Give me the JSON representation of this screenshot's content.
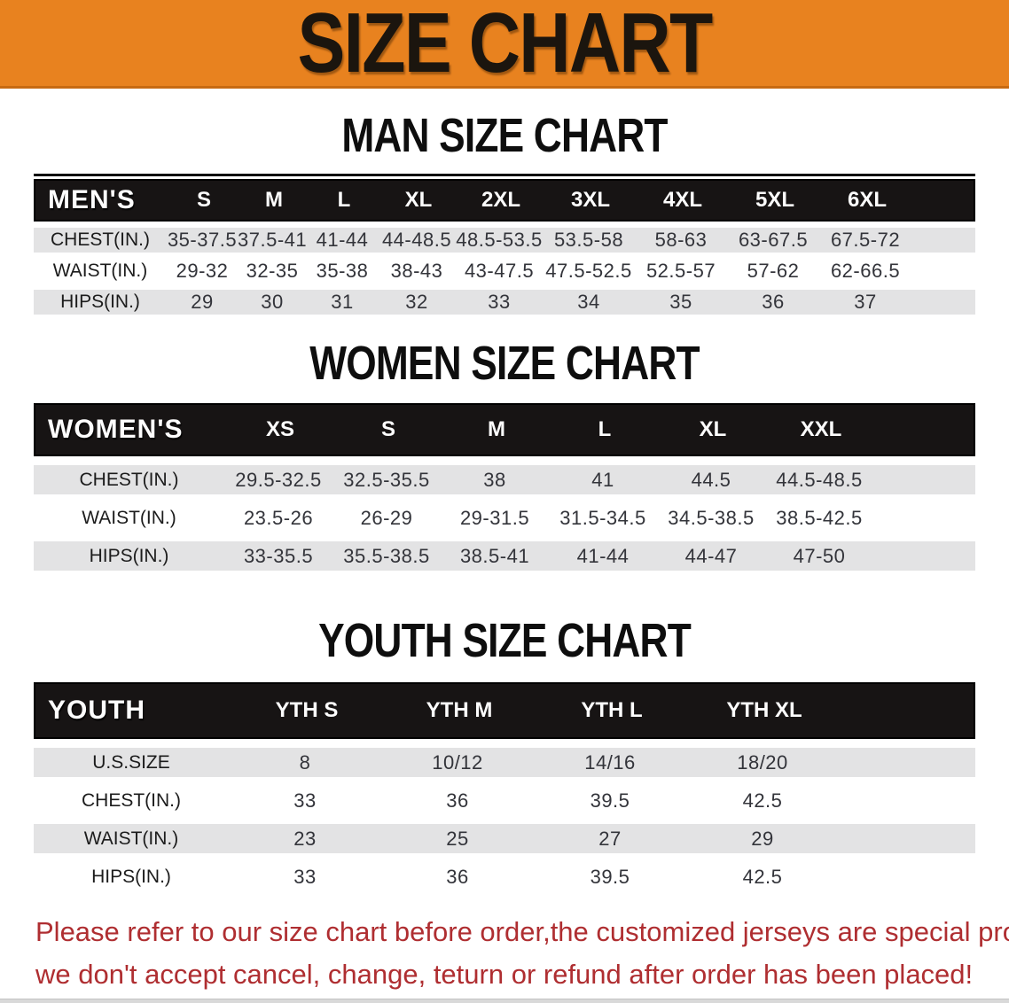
{
  "banner": {
    "title": "SIZE CHART",
    "bg_color": "#E8821F",
    "title_color": "#1B150E"
  },
  "sections": [
    {
      "heading": "MAN SIZE CHART",
      "table": {
        "label": "MEN'S",
        "columns": [
          "S",
          "M",
          "L",
          "XL",
          "2XL",
          "3XL",
          "4XL",
          "5XL",
          "6XL"
        ],
        "rows": [
          {
            "label": "CHEST(IN.)",
            "values": [
              "35-37.5",
              "37.5-41",
              "41-44",
              "44-48.5",
              "48.5-53.5",
              "53.5-58",
              "58-63",
              "63-67.5",
              "67.5-72"
            ]
          },
          {
            "label": "WAIST(IN.)",
            "values": [
              "29-32",
              "32-35",
              "35-38",
              "38-43",
              "43-47.5",
              "47.5-52.5",
              "52.5-57",
              "57-62",
              "62-66.5"
            ]
          },
          {
            "label": "HIPS(IN.)",
            "values": [
              "29",
              "30",
              "31",
              "32",
              "33",
              "34",
              "35",
              "36",
              "37"
            ]
          }
        ]
      }
    },
    {
      "heading": "WOMEN SIZE CHART",
      "table": {
        "label": "WOMEN'S",
        "columns": [
          "XS",
          "S",
          "M",
          "L",
          "XL",
          "XXL"
        ],
        "rows": [
          {
            "label": "CHEST(IN.)",
            "values": [
              "29.5-32.5",
              "32.5-35.5",
              "38",
              "41",
              "44.5",
              "44.5-48.5"
            ]
          },
          {
            "label": "WAIST(IN.)",
            "values": [
              "23.5-26",
              "26-29",
              "29-31.5",
              "31.5-34.5",
              "34.5-38.5",
              "38.5-42.5"
            ]
          },
          {
            "label": "HIPS(IN.)",
            "values": [
              "33-35.5",
              "35.5-38.5",
              "38.5-41",
              "41-44",
              "44-47",
              "47-50"
            ]
          }
        ]
      }
    },
    {
      "heading": "YOUTH SIZE CHART",
      "table": {
        "label": "YOUTH",
        "columns": [
          "YTH S",
          "YTH M",
          "YTH L",
          "YTH XL"
        ],
        "rows": [
          {
            "label": "U.S.SIZE",
            "values": [
              "8",
              "10/12",
              "14/16",
              "18/20"
            ]
          },
          {
            "label": "CHEST(IN.)",
            "values": [
              "33",
              "36",
              "39.5",
              "42.5"
            ]
          },
          {
            "label": "WAIST(IN.)",
            "values": [
              "23",
              "25",
              "27",
              "29"
            ]
          },
          {
            "label": "HIPS(IN.)",
            "values": [
              "33",
              "36",
              "39.5",
              "42.5"
            ]
          }
        ]
      }
    }
  ],
  "footer": {
    "lines": [
      "Please refer to our size chart before order,the customized jerseys are special products,",
      "we don't accept cancel, change, teturn or refund after order has been placed!"
    ],
    "text_color": "#AF2E31"
  },
  "colors": {
    "banner_orange": "#E8821F",
    "header_bar_black": "#171414",
    "row_gray": "#E3E3E4",
    "value_text": "#33343A",
    "disclaimer_red": "#AF2E31"
  }
}
